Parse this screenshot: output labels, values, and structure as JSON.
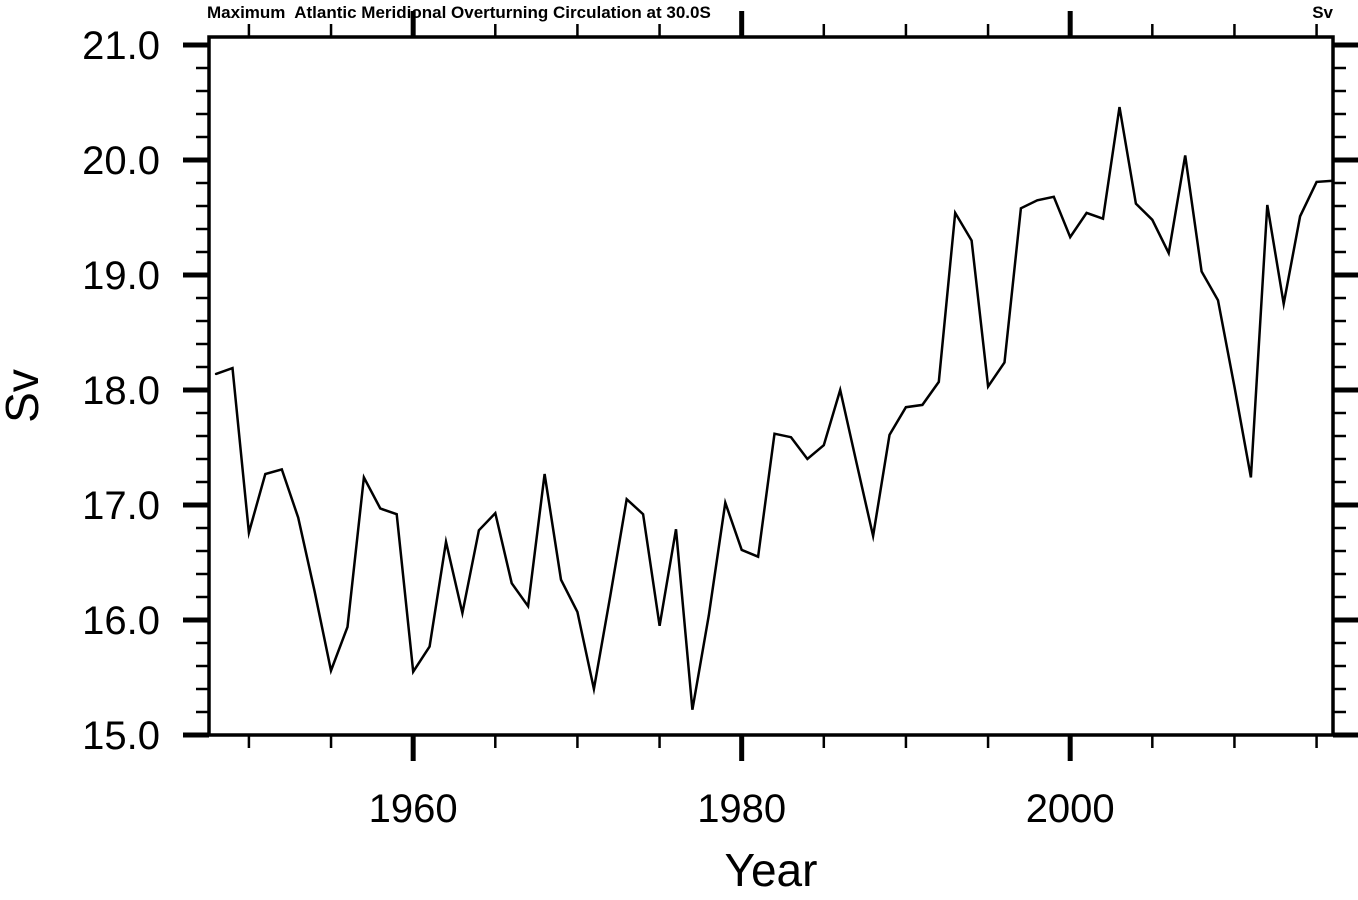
{
  "chart_data": {
    "type": "line",
    "title": "Maximum  Atlantic Meridional Overturning Circulation at 30.0S",
    "right_axis_label": "Sv",
    "ylabel": "Sv",
    "xlabel": "Year",
    "xlim": [
      1947.57,
      2016.0
    ],
    "ylim": [
      15.0,
      21.0
    ],
    "x_major_ticks": [
      1960,
      1980,
      2000
    ],
    "x_major_tick_labels": [
      "1960",
      "1980",
      "2000"
    ],
    "x_minor_tick_start": 1950,
    "x_minor_tick_end": 2015,
    "x_minor_tick_step": 5,
    "y_major_ticks": [
      15,
      16,
      17,
      18,
      19,
      20,
      21
    ],
    "y_major_tick_labels": [
      "15.0",
      "16.0",
      "17.0",
      "18.0",
      "19.0",
      "20.0",
      "21.0"
    ],
    "y_minor_tick_step": 0.2,
    "grid": false,
    "legend": null,
    "line_color": "#000000",
    "background_color": "#ffffff",
    "series": [
      {
        "x": [
          1948,
          1949,
          1950,
          1951,
          1952,
          1953,
          1954,
          1955,
          1956,
          1957,
          1958,
          1959,
          1960,
          1961,
          1962,
          1963,
          1964,
          1965,
          1966,
          1967,
          1968,
          1969,
          1970,
          1971,
          1972,
          1973,
          1974,
          1975,
          1976,
          1977,
          1978,
          1979,
          1980,
          1981,
          1982,
          1983,
          1984,
          1985,
          1986,
          1987,
          1988,
          1989,
          1990,
          1991,
          1992,
          1993,
          1994,
          1995,
          1996,
          1997,
          1998,
          1999,
          2000,
          2001,
          2002,
          2003,
          2004,
          2005,
          2006,
          2007,
          2008,
          2009,
          2010,
          2011,
          2012,
          2013,
          2014,
          2015,
          2016
        ],
        "y": [
          18.14,
          18.19,
          16.76,
          17.27,
          17.31,
          16.89,
          16.25,
          15.56,
          15.94,
          17.24,
          16.97,
          16.92,
          15.55,
          15.77,
          16.68,
          16.06,
          16.78,
          16.93,
          16.32,
          16.12,
          17.27,
          16.35,
          16.07,
          15.4,
          16.21,
          17.05,
          16.92,
          15.95,
          16.79,
          15.22,
          16.04,
          17.02,
          16.61,
          16.55,
          17.62,
          17.59,
          17.4,
          17.52,
          18.0,
          17.36,
          16.73,
          17.61,
          17.85,
          17.87,
          18.07,
          19.54,
          19.3,
          18.03,
          18.24,
          19.58,
          19.65,
          19.68,
          19.33,
          19.54,
          19.49,
          20.46,
          19.62,
          19.48,
          19.19,
          20.04,
          19.03,
          18.78,
          18.03,
          17.24,
          19.61,
          18.75,
          19.51,
          19.81,
          19.82
        ]
      }
    ]
  }
}
